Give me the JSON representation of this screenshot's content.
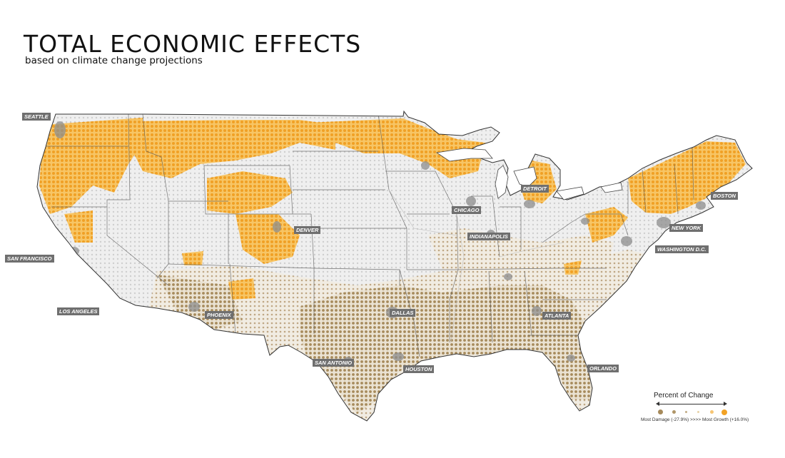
{
  "title": "TOTAL ECONOMIC EFFECTS",
  "subtitle": "based on climate change projections",
  "colors": {
    "damage": "#a68a5b",
    "growth": "#f2a225",
    "neutral": "#e3e3e3",
    "urban": "#8d8d8d",
    "border": "#555555"
  },
  "cities": [
    {
      "name": "SEATTLE"
    },
    {
      "name": "SAN FRANCISCO"
    },
    {
      "name": "LOS ANGELES"
    },
    {
      "name": "PHOENIX"
    },
    {
      "name": "DENVER"
    },
    {
      "name": "DALLAS"
    },
    {
      "name": "SAN ANTONIO"
    },
    {
      "name": "HOUSTON"
    },
    {
      "name": "CHICAGO"
    },
    {
      "name": "INDIANAPOLIS"
    },
    {
      "name": "DETROIT"
    },
    {
      "name": "ATLANTA"
    },
    {
      "name": "ORLANDO"
    },
    {
      "name": "WASHINGTON D.C."
    },
    {
      "name": "NEW YORK"
    },
    {
      "name": "BOSTON"
    }
  ],
  "legend": {
    "title": "Percent of Change",
    "range_label": "Most Damage (-27.9%) >>>> Most Growth (+16.0%)",
    "swatches": [
      "#a68a5b",
      "#b09668",
      "#c2ac86",
      "#e8d2a8",
      "#f6c574",
      "#f2a225"
    ]
  }
}
